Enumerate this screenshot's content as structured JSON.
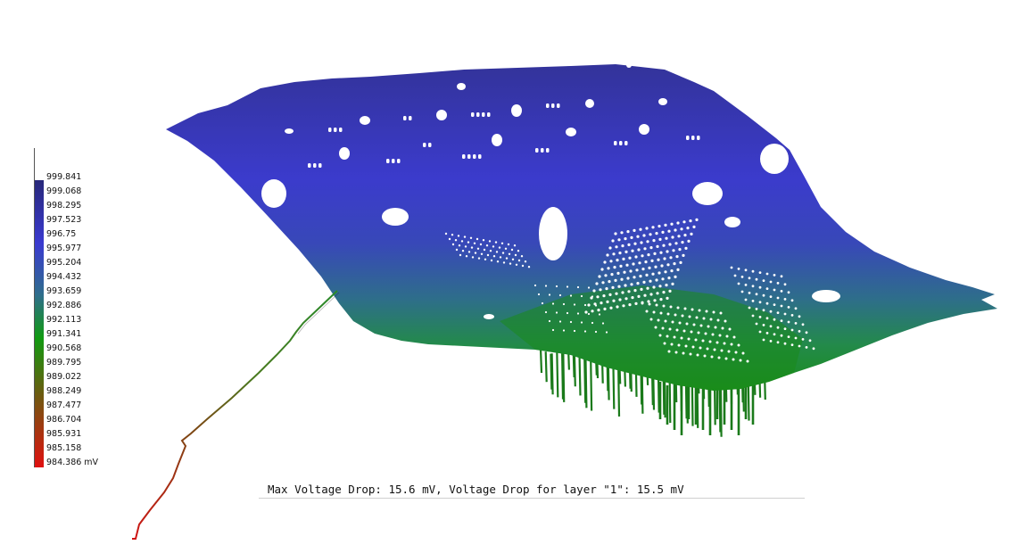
{
  "legend": {
    "labels": [
      "999.841",
      "999.068",
      "998.295",
      "997.523",
      "996.75",
      "995.977",
      "995.204",
      "994.432",
      "993.659",
      "992.886",
      "992.113",
      "991.341",
      "990.568",
      "989.795",
      "989.022",
      "988.249",
      "987.477",
      "986.704",
      "985.931",
      "985.158",
      "984.386 mV"
    ],
    "colors": {
      "top": "#28287a",
      "upper": "#3a3ad0",
      "middle": "#2f6e8c",
      "green": "#119a11",
      "brown": "#6e5a10",
      "bottom": "#e01010"
    }
  },
  "surface": {
    "colors": {
      "top": "#3434a0",
      "mid": "#3c3ccc",
      "teal": "#2c7a82",
      "green": "#1e8c1e",
      "stub": "#1a7a1a",
      "trace_green": "#2a8a2a",
      "trace_red": "#c01818"
    }
  },
  "caption": "Max Voltage Drop: 15.6 mV, Voltage Drop for layer \"1\": 15.5 mV"
}
